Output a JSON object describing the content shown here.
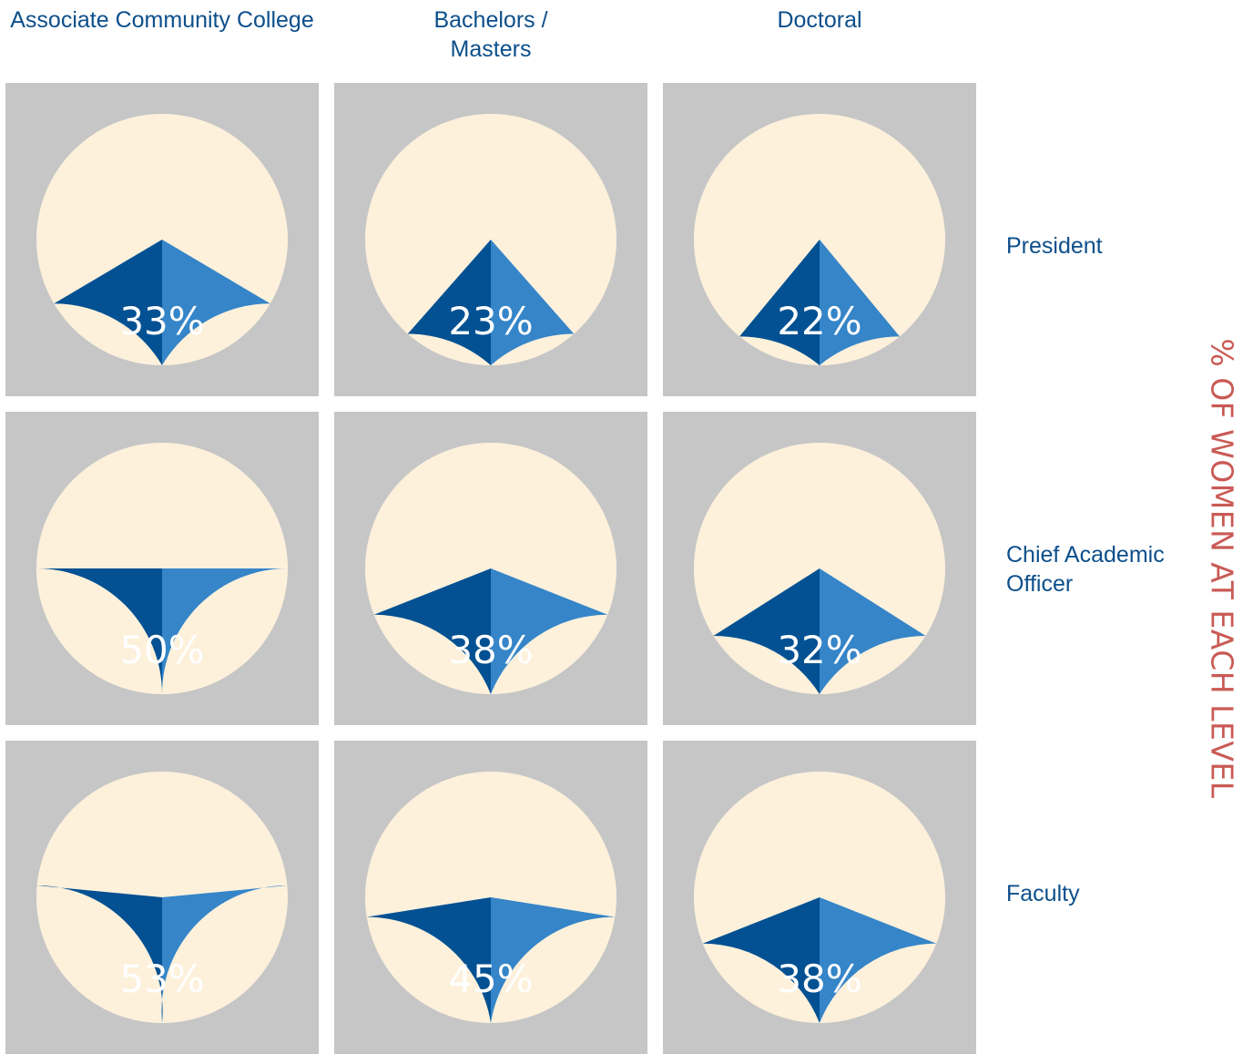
{
  "chart_data": {
    "type": "pie",
    "title": "% OF WOMEN AT EACH LEVEL",
    "columns": [
      "Associate  Community College",
      "Bachelors / Masters",
      "Doctoral"
    ],
    "rows": [
      "President",
      "Chief Academic Officer",
      "Faculty"
    ],
    "values": [
      [
        33,
        23,
        22
      ],
      [
        50,
        38,
        32
      ],
      [
        53,
        45,
        38
      ]
    ],
    "labels": [
      [
        "33%",
        "23%",
        "22%"
      ],
      [
        "50%",
        "38%",
        "32%"
      ],
      [
        "53%",
        "45%",
        "38%"
      ]
    ],
    "colors": {
      "women_left": "#3585c8",
      "women_right": "#035192",
      "remainder": "#fdf1dc",
      "tile_background": "#c6c6c6",
      "header_text": "#0d4f8b",
      "title_text": "#c95a55"
    }
  }
}
